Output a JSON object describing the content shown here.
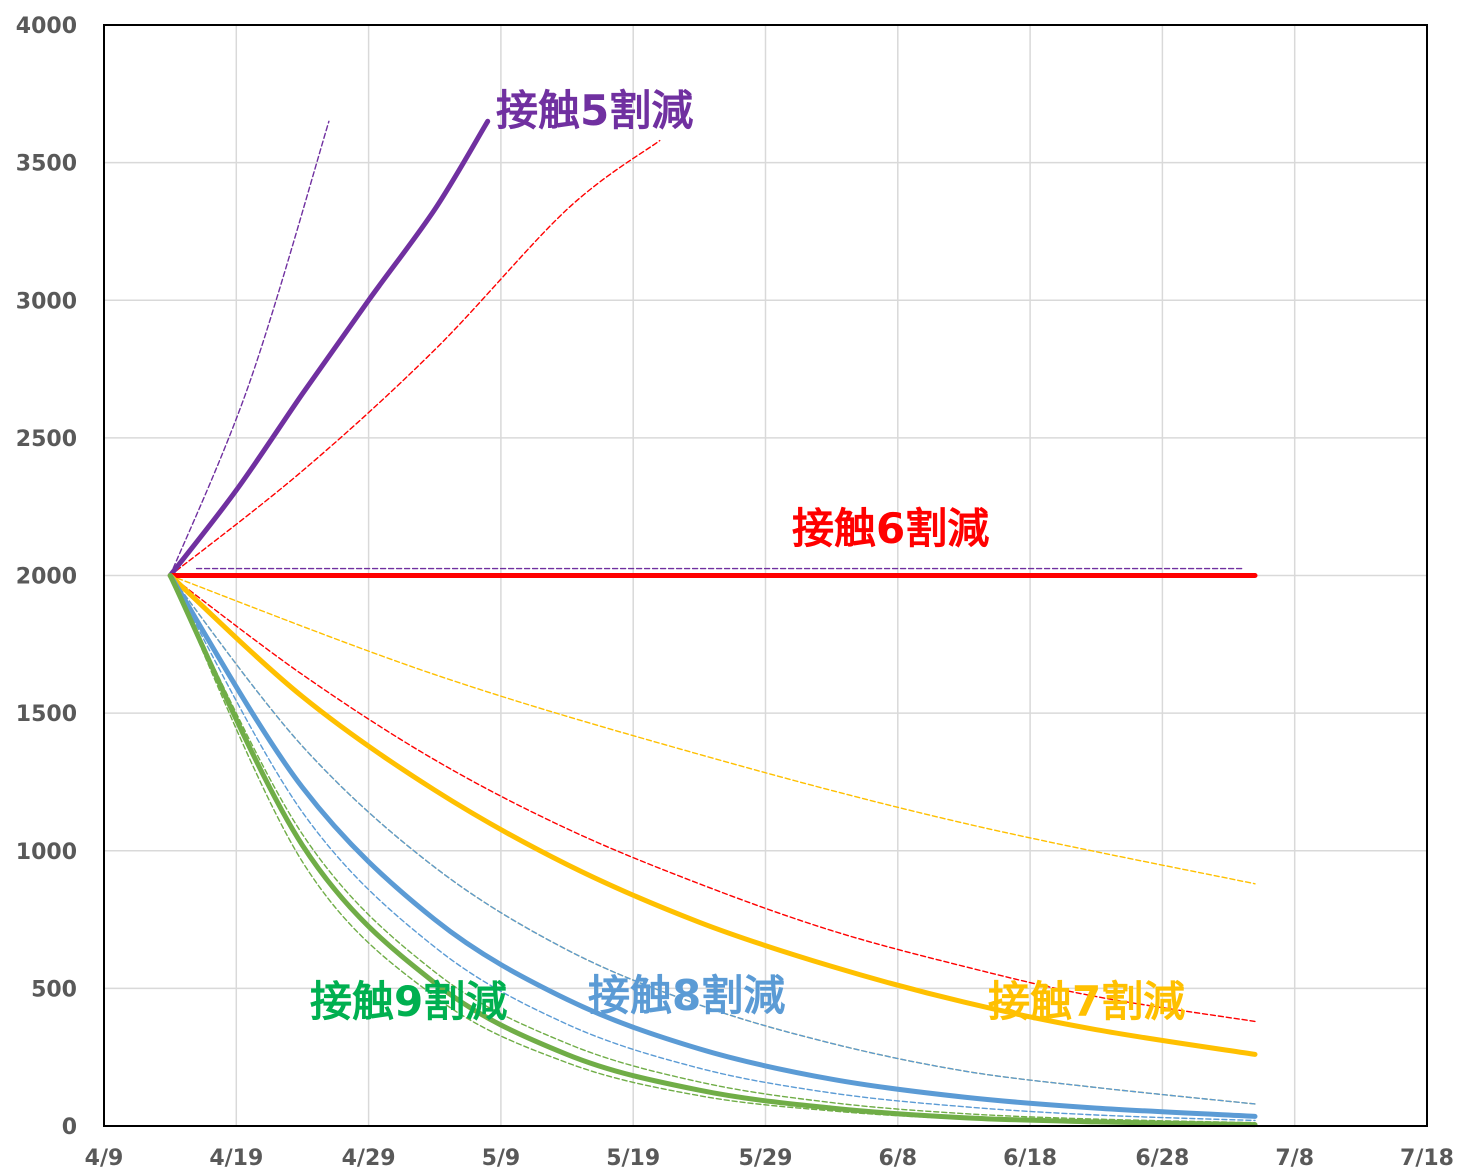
{
  "chart_data": {
    "type": "line",
    "title": "",
    "xlabel": "",
    "ylabel": "",
    "x_axis": {
      "type": "date",
      "min": "2020-04-09",
      "max": "2020-07-18",
      "ticks": [
        "2020-04-09",
        "2020-04-19",
        "2020-04-29",
        "2020-05-09",
        "2020-05-19",
        "2020-05-29",
        "2020-06-08",
        "2020-06-18",
        "2020-06-28",
        "2020-07-08",
        "2020-07-18"
      ],
      "tick_labels": [
        "4/9",
        "4/19",
        "4/29",
        "5/9",
        "5/19",
        "5/29",
        "6/8",
        "6/18",
        "6/28",
        "7/8",
        "7/18"
      ]
    },
    "y_axis": {
      "min": 0,
      "max": 4000,
      "ticks": [
        0,
        500,
        1000,
        1500,
        2000,
        2500,
        3000,
        3500,
        4000
      ],
      "tick_labels": [
        "0",
        "500",
        "1000",
        "1500",
        "2000",
        "2500",
        "3000",
        "3500",
        "4000"
      ]
    },
    "grid": true,
    "legend": "none",
    "annotations": [
      {
        "text": "接触5割減",
        "color": "#7030A0"
      },
      {
        "text": "接触6割減",
        "color": "#FF0000"
      },
      {
        "text": "接触7割減",
        "color": "#FFC000"
      },
      {
        "text": "接触8割減",
        "color": "#5B9BD5"
      },
      {
        "text": "接触9割減",
        "color": "#00B050"
      }
    ],
    "series": [
      {
        "color": "#7030A0",
        "style": "solid",
        "x": [
          "2020-04-14",
          "2020-04-19",
          "2020-04-24",
          "2020-04-29",
          "2020-05-04",
          "2020-05-08"
        ],
        "y": [
          2000,
          2310,
          2660,
          3000,
          3330,
          3650
        ]
      },
      {
        "color": "#FF0000",
        "style": "solid",
        "x": [
          "2020-04-14",
          "2020-07-05"
        ],
        "y": [
          2000,
          2000
        ]
      },
      {
        "color": "#FFC000",
        "style": "solid",
        "x": [
          "2020-04-14",
          "2020-04-24",
          "2020-05-04",
          "2020-05-14",
          "2020-05-24",
          "2020-06-03",
          "2020-06-13",
          "2020-06-23",
          "2020-07-05"
        ],
        "y": [
          2000,
          1560,
          1220,
          950,
          740,
          580,
          450,
          350,
          260
        ]
      },
      {
        "color": "#5B9BD5",
        "style": "solid",
        "x": [
          "2020-04-14",
          "2020-04-24",
          "2020-05-04",
          "2020-05-14",
          "2020-05-24",
          "2020-06-03",
          "2020-06-13",
          "2020-06-23",
          "2020-07-05"
        ],
        "y": [
          2000,
          1230,
          750,
          460,
          280,
          170,
          105,
          65,
          35
        ]
      },
      {
        "color": "#70AD47",
        "style": "solid",
        "x": [
          "2020-04-14",
          "2020-04-24",
          "2020-05-04",
          "2020-05-14",
          "2020-05-24",
          "2020-06-03",
          "2020-06-13",
          "2020-06-23",
          "2020-07-05"
        ],
        "y": [
          2000,
          1020,
          520,
          260,
          130,
          65,
          30,
          15,
          5
        ]
      },
      {
        "color": "#7030A0",
        "style": "dashed",
        "x": [
          "2020-04-14",
          "2020-04-20",
          "2020-04-26"
        ],
        "y": [
          2000,
          2700,
          3650
        ]
      },
      {
        "color": "#FF0000",
        "style": "dashed",
        "x": [
          "2020-04-14",
          "2020-04-24",
          "2020-05-04",
          "2020-05-14",
          "2020-05-21"
        ],
        "y": [
          2000,
          2380,
          2820,
          3330,
          3580
        ]
      },
      {
        "color": "#7030A0",
        "style": "dashed",
        "x": [
          "2020-04-16",
          "2020-07-04"
        ],
        "y": [
          2025,
          2025
        ]
      },
      {
        "color": "#FFC000",
        "style": "dashed",
        "x": [
          "2020-04-14",
          "2020-05-04",
          "2020-05-24",
          "2020-06-13",
          "2020-07-05"
        ],
        "y": [
          2000,
          1640,
          1350,
          1100,
          880
        ]
      },
      {
        "color": "#FF0000",
        "style": "dashed",
        "x": [
          "2020-04-14",
          "2020-04-24",
          "2020-05-04",
          "2020-05-14",
          "2020-05-24",
          "2020-06-03",
          "2020-06-13",
          "2020-06-23",
          "2020-07-05"
        ],
        "y": [
          2000,
          1640,
          1330,
          1080,
          880,
          710,
          580,
          470,
          380
        ]
      },
      {
        "color": "#FFC000",
        "style": "dashed",
        "x": [
          "2020-04-14",
          "2020-04-24",
          "2020-05-04",
          "2020-05-14",
          "2020-05-24",
          "2020-06-03",
          "2020-06-13",
          "2020-06-23",
          "2020-07-05"
        ],
        "y": [
          2000,
          1380,
          940,
          640,
          440,
          300,
          200,
          140,
          80
        ]
      },
      {
        "color": "#5B9BD5",
        "style": "dashed",
        "x": [
          "2020-04-14",
          "2020-04-24",
          "2020-05-04",
          "2020-05-14",
          "2020-05-24",
          "2020-06-03",
          "2020-06-13",
          "2020-06-23",
          "2020-07-05"
        ],
        "y": [
          2000,
          1380,
          940,
          640,
          440,
          300,
          200,
          140,
          80
        ]
      },
      {
        "color": "#5B9BD5",
        "style": "dashed",
        "x": [
          "2020-04-14",
          "2020-04-24",
          "2020-05-04",
          "2020-05-14",
          "2020-05-24",
          "2020-06-03",
          "2020-06-13",
          "2020-06-23",
          "2020-07-05"
        ],
        "y": [
          2000,
          1140,
          650,
          370,
          210,
          120,
          70,
          40,
          20
        ]
      },
      {
        "color": "#70AD47",
        "style": "dashed",
        "x": [
          "2020-04-14",
          "2020-04-24",
          "2020-05-04",
          "2020-05-14",
          "2020-05-24",
          "2020-06-03",
          "2020-06-13",
          "2020-06-23",
          "2020-07-05"
        ],
        "y": [
          2000,
          1060,
          560,
          300,
          160,
          85,
          45,
          25,
          12
        ]
      },
      {
        "color": "#70AD47",
        "style": "dashed",
        "x": [
          "2020-04-14",
          "2020-04-24",
          "2020-05-04",
          "2020-05-14",
          "2020-05-24",
          "2020-06-03",
          "2020-06-13",
          "2020-06-23",
          "2020-07-05"
        ],
        "y": [
          2000,
          960,
          470,
          230,
          110,
          55,
          25,
          12,
          5
        ]
      }
    ]
  }
}
